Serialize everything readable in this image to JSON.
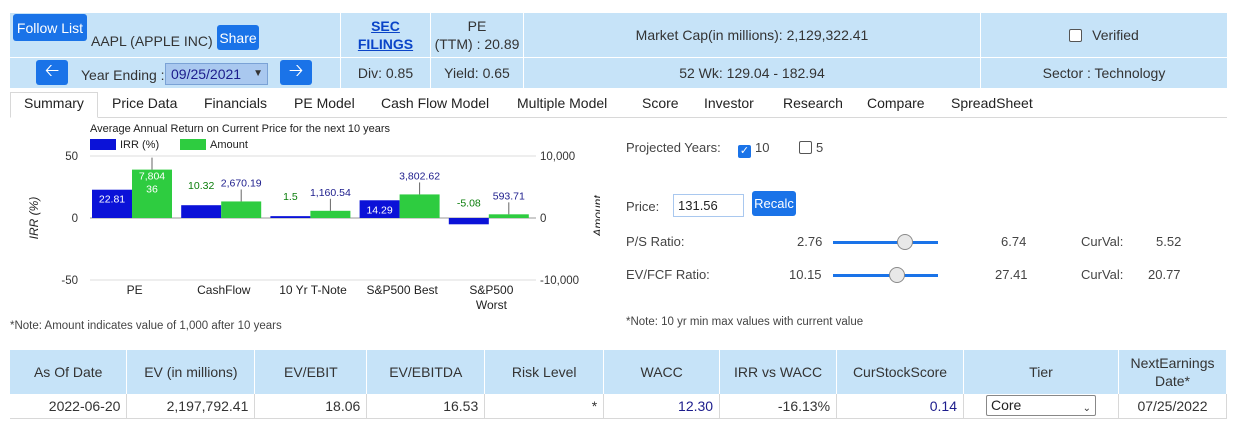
{
  "header": {
    "follow_label": "Follow List",
    "ticker": "AAPL (APPLE INC)",
    "share_label": "Share",
    "sec_line1": "SEC",
    "sec_line2": "FILINGS",
    "pe_line1": "PE",
    "pe_line2": "(TTM) : 20.89",
    "market_cap": "Market Cap(in millions): 2,129,322.41",
    "verified": "Verified",
    "year_label": "Year Ending :",
    "year_value": "09/25/2021",
    "div": "Div: 0.85",
    "yield": "Yield: 0.65",
    "wk52": "52 Wk: 129.04 - 182.94",
    "sector": "Sector : Technology"
  },
  "tabs": [
    "Summary",
    "Price Data",
    "Financials",
    "PE Model",
    "Cash Flow Model",
    "Multiple Model",
    "Score",
    "Investor",
    "Research",
    "Compare",
    "SpreadSheet"
  ],
  "chart_data": {
    "type": "bar",
    "title": "Average Annual Return on Current Price for the next 10 years",
    "categories": [
      "PE",
      "CashFlow",
      "10 Yr T-Note",
      "S&P500 Best",
      "S&P500 Worst"
    ],
    "category_labels": [
      [
        "PE"
      ],
      [
        "CashFlow"
      ],
      [
        "10 Yr T-Note"
      ],
      [
        "S&P500 Best"
      ],
      [
        "S&P500",
        "Worst"
      ]
    ],
    "series": [
      {
        "name": "IRR (%)",
        "color": "#0b12d8",
        "axis": "left",
        "values": [
          22.81,
          10.32,
          1.5,
          14.29,
          -5.08
        ],
        "labels": [
          "22.81",
          "10.32",
          "1.5",
          "14.29",
          "-5.08"
        ]
      },
      {
        "name": "Amount",
        "color": "#2ecc40",
        "axis": "right",
        "values": [
          7804.36,
          2670.19,
          1160.54,
          3802.62,
          593.71
        ],
        "labels": [
          "7,804\n36",
          "2,670.19",
          "1,160.54",
          "3,802.62",
          "593.71"
        ]
      }
    ],
    "ylabel": "IRR (%)",
    "y2label": "Amount",
    "ylim": [
      -50,
      50
    ],
    "y2lim": [
      -10000,
      10000
    ],
    "yticks": [
      "50",
      "0",
      "-50"
    ],
    "y2ticks": [
      "10,000",
      "0",
      "-10,000"
    ],
    "legend": "top-left"
  },
  "note_chart": "*Note: Amount indicates value of 1,000 after 10 years",
  "projection": {
    "label": "Projected Years:",
    "opt1": "10",
    "opt2": "5",
    "price_label": "Price:",
    "price_value": "131.56",
    "recalc_label": "Recalc",
    "ps_label": "P/S Ratio:",
    "ps_min": "2.76",
    "ps_max": "6.74",
    "ps_cur_label": "CurVal:",
    "ps_cur": "5.52",
    "ps_level": 0.69,
    "ev_label": "EV/FCF Ratio:",
    "ev_min": "10.15",
    "ev_max": "27.41",
    "ev_cur_label": "CurVal:",
    "ev_cur": "20.77",
    "ev_level": 0.61,
    "note": "*Note: 10 yr min max values with current value"
  },
  "table": {
    "headers": [
      "As Of Date",
      "EV (in millions)",
      "EV/EBIT",
      "EV/EBITDA",
      "Risk Level",
      "WACC",
      "IRR vs WACC",
      "CurStockScore",
      "Tier",
      "NextEarnings",
      "Date*"
    ],
    "row": {
      "date": "2022-06-20",
      "ev": "2,197,792.41",
      "ev_ebit": "18.06",
      "ev_ebitda": "16.53",
      "risk": "*",
      "wacc": "12.30",
      "irr_wacc": "-16.13%",
      "score": "0.14",
      "tier": "Core",
      "next": "07/25/2022"
    }
  }
}
